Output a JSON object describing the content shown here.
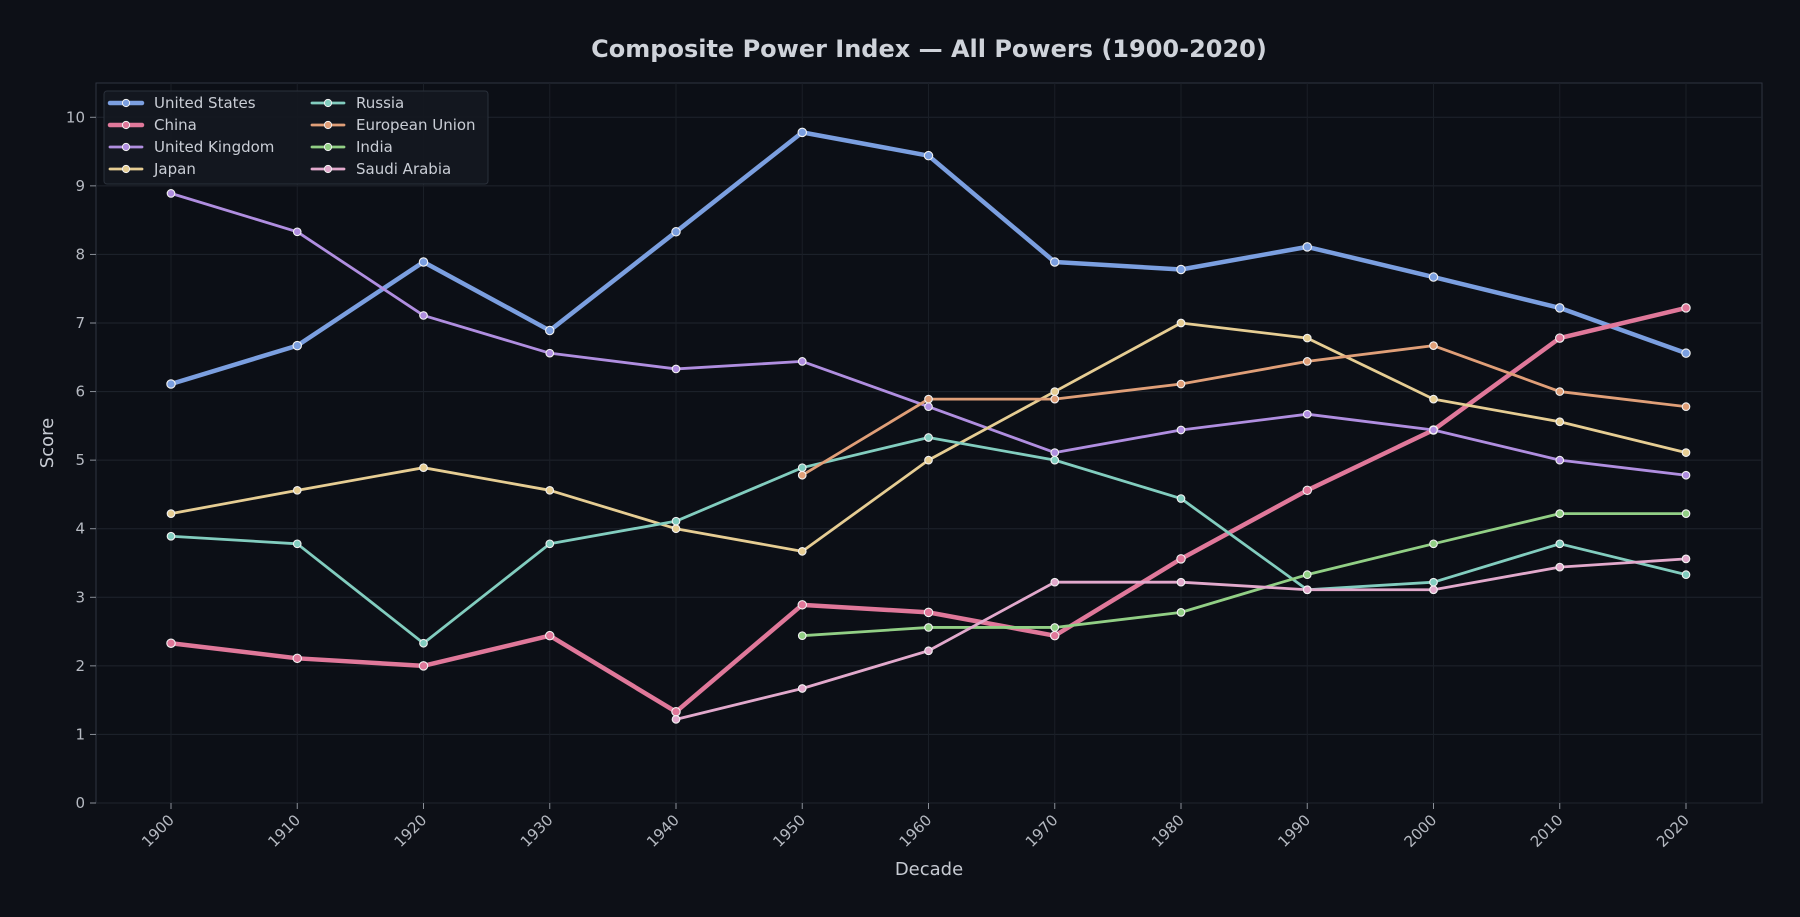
{
  "chart_data": {
    "type": "line",
    "title": "Composite Power Index — All Powers (1900-2020)",
    "xlabel": "Decade",
    "ylabel": "Score",
    "x": [
      "1900",
      "1910",
      "1920",
      "1930",
      "1940",
      "1950",
      "1960",
      "1970",
      "1980",
      "1990",
      "2000",
      "2010",
      "2020"
    ],
    "ylim": [
      0,
      10.5
    ],
    "yticks": [
      "0",
      "1",
      "2",
      "3",
      "4",
      "5",
      "6",
      "7",
      "8",
      "9",
      "10"
    ],
    "grid": true,
    "legend_position": "top-left",
    "series": [
      {
        "name": "United States",
        "color": "#7b9fe0",
        "emphasis": true,
        "values": [
          6.11,
          6.67,
          7.89,
          6.89,
          8.33,
          9.78,
          9.44,
          7.89,
          7.78,
          8.11,
          7.67,
          7.22,
          6.56
        ]
      },
      {
        "name": "China",
        "color": "#e0789a",
        "emphasis": true,
        "values": [
          2.33,
          2.11,
          2.0,
          2.44,
          1.33,
          2.89,
          2.78,
          2.44,
          3.56,
          4.56,
          5.44,
          6.78,
          7.22
        ]
      },
      {
        "name": "United Kingdom",
        "color": "#b08ee0",
        "values": [
          8.89,
          8.33,
          7.11,
          6.56,
          6.33,
          6.44,
          5.78,
          5.11,
          5.44,
          5.67,
          5.44,
          5.0,
          4.78
        ]
      },
      {
        "name": "Japan",
        "color": "#e6cd93",
        "values": [
          4.22,
          4.56,
          4.89,
          4.56,
          4.0,
          3.67,
          5.0,
          6.0,
          7.0,
          6.78,
          5.89,
          5.56,
          5.11
        ]
      },
      {
        "name": "Russia",
        "color": "#82cdbf",
        "values": [
          3.89,
          3.78,
          2.33,
          3.78,
          4.11,
          4.89,
          5.33,
          5.0,
          4.44,
          3.11,
          3.22,
          3.78,
          3.33
        ]
      },
      {
        "name": "European Union",
        "color": "#e09f78",
        "values": [
          null,
          null,
          null,
          null,
          null,
          4.78,
          5.89,
          5.89,
          6.11,
          6.44,
          6.67,
          6.0,
          5.78
        ]
      },
      {
        "name": "India",
        "color": "#92cf85",
        "values": [
          null,
          null,
          null,
          null,
          null,
          2.44,
          2.56,
          2.56,
          2.78,
          3.33,
          3.78,
          4.22,
          4.22
        ]
      },
      {
        "name": "Saudi Arabia",
        "color": "#e2a9cc",
        "values": [
          null,
          null,
          null,
          null,
          1.22,
          1.67,
          2.22,
          3.22,
          3.22,
          3.11,
          3.11,
          3.44,
          3.56
        ]
      }
    ]
  }
}
